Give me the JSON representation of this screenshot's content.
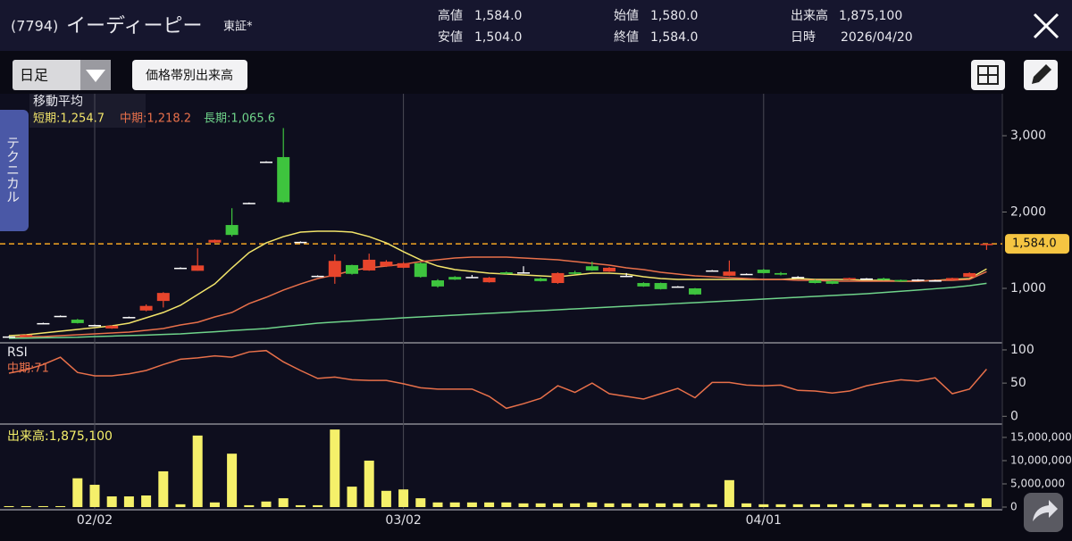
{
  "header": {
    "code": "(7794)",
    "name": "イーディーピー",
    "market": "東証*",
    "stats": [
      {
        "label": "高値",
        "value": "1,584.0"
      },
      {
        "label": "安値",
        "value": "1,504.0"
      },
      {
        "label": "始値",
        "value": "1,580.0"
      },
      {
        "label": "終値",
        "value": "1,584.0"
      },
      {
        "label": "出来高",
        "value": "1,875,100"
      },
      {
        "label": "日時",
        "value": "2026/04/20"
      }
    ]
  },
  "toolbar": {
    "period": "日足",
    "button": "価格帯別出来高"
  },
  "side_tab": "テクニカル",
  "chart_data": [
    {
      "type": "candlestick",
      "title": "移動平均",
      "categories": [
        null,
        null,
        null,
        null,
        null,
        "02/02",
        null,
        null,
        null,
        null,
        null,
        null,
        null,
        null,
        null,
        null,
        null,
        null,
        null,
        null,
        null,
        null,
        null,
        "03/02",
        null,
        null,
        null,
        null,
        null,
        null,
        null,
        null,
        null,
        null,
        null,
        null,
        null,
        null,
        null,
        null,
        null,
        null,
        null,
        null,
        "04/01",
        null,
        null,
        null,
        null,
        null,
        null,
        null,
        null,
        null,
        null,
        null,
        null,
        null
      ],
      "open": [
        370,
        365,
        545,
        640,
        590,
        520,
        475,
        625,
        710,
        835,
        1270,
        1230,
        1600,
        1830,
        2120,
        2660,
        2720,
        1610,
        1165,
        1150,
        1305,
        1235,
        1290,
        1270,
        1330,
        1105,
        1150,
        1150,
        1080,
        1210,
        1210,
        1130,
        1070,
        1210,
        1290,
        1220,
        1165,
        1070,
        1070,
        1025,
        1000,
        1235,
        1165,
        1190,
        1245,
        1200,
        1150,
        1105,
        1095,
        1115,
        1130,
        1130,
        1110,
        1115,
        1105,
        1110,
        1150,
        1580
      ],
      "high": [
        375,
        395,
        550,
        645,
        600,
        525,
        515,
        630,
        790,
        950,
        1275,
        1525,
        1640,
        2050,
        2125,
        2665,
        3100,
        1615,
        1170,
        1445,
        1310,
        1455,
        1370,
        1345,
        1340,
        1120,
        1160,
        1175,
        1150,
        1220,
        1290,
        1140,
        1210,
        1230,
        1350,
        1280,
        1200,
        1080,
        1075,
        1030,
        1005,
        1240,
        1365,
        1195,
        1255,
        1215,
        1160,
        1115,
        1100,
        1140,
        1135,
        1140,
        1115,
        1120,
        1110,
        1140,
        1210,
        1584
      ],
      "low": [
        365,
        360,
        540,
        635,
        540,
        510,
        470,
        620,
        700,
        750,
        1265,
        1230,
        1595,
        1680,
        2110,
        2650,
        2120,
        1605,
        1160,
        1060,
        1180,
        1230,
        1280,
        1265,
        1140,
        1010,
        1110,
        1140,
        1075,
        1185,
        1205,
        1090,
        1060,
        1185,
        1230,
        1215,
        1150,
        1020,
        985,
        1020,
        915,
        1230,
        1160,
        1185,
        1195,
        1170,
        1145,
        1065,
        1055,
        1110,
        1125,
        1105,
        1085,
        1110,
        1100,
        1105,
        1145,
        1504
      ],
      "close": [
        370,
        390,
        545,
        640,
        545,
        520,
        510,
        625,
        770,
        940,
        1270,
        1300,
        1635,
        1700,
        2120,
        2660,
        2130,
        1610,
        1165,
        1360,
        1190,
        1375,
        1350,
        1330,
        1150,
        1025,
        1115,
        1150,
        1140,
        1190,
        1210,
        1095,
        1200,
        1190,
        1235,
        1270,
        1165,
        1025,
        990,
        1025,
        920,
        1235,
        1220,
        1190,
        1200,
        1180,
        1150,
        1070,
        1060,
        1135,
        1130,
        1110,
        1090,
        1115,
        1105,
        1135,
        1200,
        1584
      ],
      "up_color": "#e8452c",
      "down_color": "#3ec43e",
      "flat_color": "#ffffff",
      "series": [
        {
          "name": "短期:1,254.7",
          "color": "#f2e46a",
          "values": [
            380,
            392,
            415,
            439,
            462,
            485,
            509,
            544,
            614,
            684,
            778,
            918,
            1058,
            1269,
            1468,
            1596,
            1678,
            1737,
            1749,
            1749,
            1737,
            1678,
            1596,
            1480,
            1374,
            1292,
            1246,
            1222,
            1199,
            1187,
            1175,
            1164,
            1152,
            1175,
            1199,
            1199,
            1187,
            1152,
            1129,
            1117,
            1117,
            1117,
            1117,
            1117,
            1117,
            1117,
            1129,
            1117,
            1117,
            1117,
            1105,
            1105,
            1094,
            1094,
            1105,
            1117,
            1129,
            1254.7
          ]
        },
        {
          "name": "中期:1,218.2",
          "color": "#e8704a",
          "values": [
            357,
            368,
            368,
            380,
            392,
            404,
            415,
            427,
            450,
            474,
            521,
            556,
            626,
            684,
            801,
            883,
            977,
            1058,
            1129,
            1175,
            1234,
            1269,
            1292,
            1316,
            1351,
            1374,
            1398,
            1409,
            1409,
            1409,
            1398,
            1386,
            1374,
            1351,
            1327,
            1304,
            1269,
            1246,
            1211,
            1187,
            1164,
            1152,
            1140,
            1129,
            1117,
            1117,
            1105,
            1105,
            1094,
            1094,
            1094,
            1094,
            1094,
            1094,
            1105,
            1105,
            1117,
            1218.2
          ]
        },
        {
          "name": "長期:1,065.6",
          "color": "#6fd38a",
          "values": [
            345,
            348,
            352,
            356,
            360,
            369,
            375,
            381,
            388,
            396,
            404,
            418,
            432,
            447,
            461,
            474,
            498,
            521,
            544,
            558,
            572,
            586,
            600,
            614,
            626,
            638,
            649,
            661,
            673,
            685,
            697,
            708,
            720,
            731,
            743,
            755,
            766,
            778,
            790,
            802,
            813,
            825,
            836,
            848,
            860,
            871,
            883,
            895,
            907,
            918,
            930,
            946,
            962,
            978,
            995,
            1012,
            1035,
            1065.6
          ]
        }
      ],
      "reference": {
        "value": 1584,
        "label": "1,584.0",
        "color": "#f5a623"
      },
      "ylim": [
        310,
        3550
      ],
      "yticks": [
        {
          "value": 1000,
          "label": "1,000"
        },
        {
          "value": 2000,
          "label": "2,000"
        },
        {
          "value": 3000,
          "label": "3,000"
        }
      ]
    },
    {
      "type": "line",
      "title": "RSI",
      "series": [
        {
          "name": "中期:71",
          "color": "#e8704a",
          "values": [
            65,
            70,
            78,
            89,
            66,
            61,
            61,
            64,
            69,
            78,
            86,
            88,
            91,
            89,
            97,
            99,
            82,
            69,
            57,
            59,
            55,
            54,
            54,
            49,
            43,
            41,
            41,
            41,
            30,
            12,
            19,
            27,
            46,
            36,
            50,
            34,
            30,
            26,
            34,
            42,
            28,
            51,
            51,
            47,
            46,
            47,
            39,
            38,
            35,
            38,
            46,
            51,
            55,
            53,
            58,
            34,
            41,
            71
          ]
        }
      ],
      "ylim": [
        -9,
        108
      ],
      "yticks": [
        0,
        50,
        100
      ]
    },
    {
      "type": "bar",
      "title": "出来高:1,875,100",
      "color": "#f5f06a",
      "values": [
        200000,
        200000,
        200000,
        200000,
        6200000,
        4800000,
        2300000,
        2300000,
        2500000,
        7700000,
        600000,
        15400000,
        1000000,
        11500000,
        400000,
        1200000,
        1900000,
        400000,
        400000,
        16700000,
        4400000,
        10000000,
        3500000,
        3800000,
        1900000,
        1000000,
        1000000,
        1000000,
        1000000,
        1000000,
        800000,
        800000,
        800000,
        800000,
        1000000,
        800000,
        800000,
        800000,
        800000,
        800000,
        800000,
        600000,
        5800000,
        800000,
        600000,
        600000,
        600000,
        600000,
        600000,
        600000,
        800000,
        600000,
        600000,
        600000,
        600000,
        600000,
        800000,
        1875100
      ],
      "ylim": [
        0,
        17300000
      ],
      "yticks": [
        0,
        {
          "value": 5000000,
          "label": "5,000,000"
        },
        {
          "value": 10000000,
          "label": "10,000,000"
        },
        {
          "value": 15000000,
          "label": "15,000,000"
        }
      ]
    }
  ]
}
